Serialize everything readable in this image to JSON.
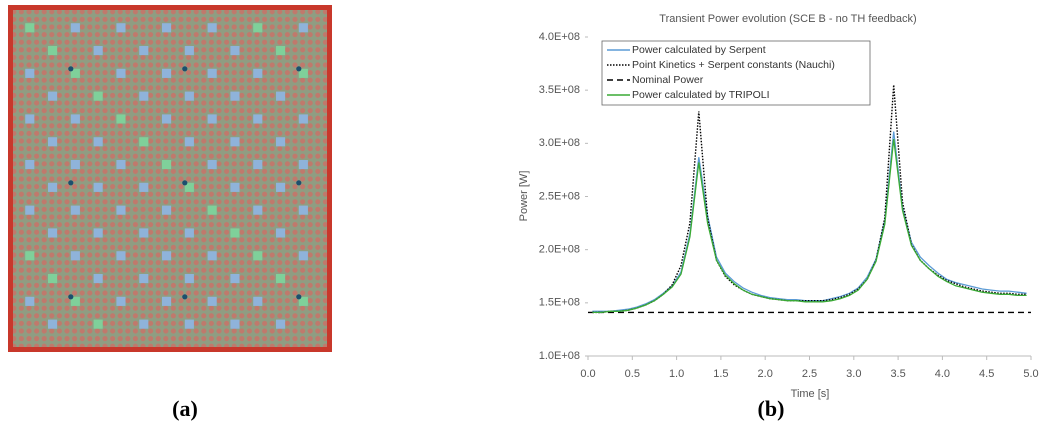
{
  "chart_data": {
    "type": "line",
    "title": "Transient Power evolution  (SCE B - no TH feedback)",
    "x_label": "Time [s]",
    "y_label": "Power [W]",
    "xlim": [
      0,
      5
    ],
    "ylim": [
      100000000,
      400000000
    ],
    "xticks": [
      {
        "value": 0,
        "label": "0.0"
      },
      0.5,
      {
        "value": 1,
        "label": "1.0"
      },
      1.5,
      {
        "value": 2,
        "label": "2.0"
      },
      2.5,
      {
        "value": 3,
        "label": "3.0"
      },
      3.5,
      {
        "value": 4,
        "label": "4.0"
      },
      4.5,
      {
        "value": 5,
        "label": "5.0"
      }
    ],
    "yticks": [
      {
        "value": 100000000,
        "label": "1.0E+08"
      },
      {
        "value": 150000000,
        "label": "1.5E+08"
      },
      {
        "value": 200000000,
        "label": "2.0E+08"
      },
      {
        "value": 250000000,
        "label": "2.5E+08"
      },
      {
        "value": 300000000,
        "label": "3.0E+08"
      },
      {
        "value": 350000000,
        "label": "3.5E+08"
      },
      {
        "value": 400000000,
        "label": "4.0E+08"
      }
    ],
    "grid": false,
    "legend": "upper left",
    "x": [
      0.05,
      0.15,
      0.25,
      0.35,
      0.45,
      0.55,
      0.65,
      0.75,
      0.85,
      0.95,
      1.05,
      1.15,
      1.25,
      1.35,
      1.45,
      1.55,
      1.65,
      1.75,
      1.85,
      1.95,
      2.05,
      2.15,
      2.25,
      2.35,
      2.45,
      2.55,
      2.65,
      2.75,
      2.85,
      2.95,
      3.05,
      3.15,
      3.25,
      3.35,
      3.45,
      3.55,
      3.65,
      3.75,
      3.85,
      3.95,
      4.05,
      4.15,
      4.25,
      4.35,
      4.45,
      4.55,
      4.65,
      4.75,
      4.85,
      4.95
    ],
    "series": [
      {
        "name": "Power calculated by Serpent",
        "color": "#5b9bd5",
        "dash": "solid",
        "values": [
          142000000,
          142000000,
          142000000,
          143000000,
          144000000,
          146000000,
          149000000,
          153000000,
          159000000,
          166000000,
          179000000,
          215000000,
          287000000,
          232000000,
          193000000,
          178000000,
          170000000,
          164000000,
          160000000,
          157000000,
          155000000,
          154000000,
          153000000,
          153000000,
          152000000,
          152000000,
          152000000,
          154000000,
          156000000,
          159000000,
          164000000,
          174000000,
          191000000,
          228000000,
          311000000,
          240000000,
          207000000,
          193000000,
          185000000,
          178000000,
          172000000,
          169000000,
          167000000,
          165000000,
          163000000,
          162000000,
          161000000,
          161000000,
          160000000,
          159000000
        ]
      },
      {
        "name": "Point Kinetics + Serpent constants (Nauchi)",
        "color": "#000000",
        "dash": "dotted",
        "values": [
          141000000,
          141000000,
          142000000,
          142000000,
          143000000,
          145000000,
          148000000,
          152000000,
          158000000,
          167000000,
          185000000,
          225000000,
          330000000,
          230000000,
          190000000,
          175000000,
          167000000,
          162000000,
          158000000,
          156000000,
          154000000,
          153000000,
          152000000,
          152000000,
          152000000,
          152000000,
          152000000,
          153000000,
          155000000,
          158000000,
          163000000,
          172000000,
          190000000,
          230000000,
          355000000,
          245000000,
          205000000,
          190000000,
          182000000,
          176000000,
          171000000,
          168000000,
          165000000,
          163000000,
          161000000,
          160000000,
          159000000,
          159000000,
          158000000,
          158000000
        ]
      },
      {
        "name": "Nominal Power",
        "color": "#000000",
        "dash": "dashed",
        "x": [
          0,
          5
        ],
        "values": [
          141000000,
          141000000
        ]
      },
      {
        "name": "Power calculated by TRIPOLI",
        "color": "#3aaa35",
        "dash": "solid",
        "values": [
          141000000,
          141000000,
          142000000,
          142000000,
          143000000,
          145000000,
          148000000,
          152000000,
          158000000,
          165000000,
          177000000,
          212000000,
          282000000,
          225000000,
          190000000,
          176000000,
          168000000,
          162000000,
          158000000,
          156000000,
          154000000,
          153000000,
          152000000,
          152000000,
          151000000,
          151000000,
          151000000,
          152000000,
          154000000,
          157000000,
          162000000,
          172000000,
          189000000,
          224000000,
          304000000,
          237000000,
          204000000,
          190000000,
          182000000,
          175000000,
          170000000,
          166000000,
          164000000,
          162000000,
          160000000,
          159000000,
          158000000,
          158000000,
          157000000,
          157000000
        ]
      }
    ]
  },
  "panel_captions": [
    "(a)",
    "(b)"
  ]
}
